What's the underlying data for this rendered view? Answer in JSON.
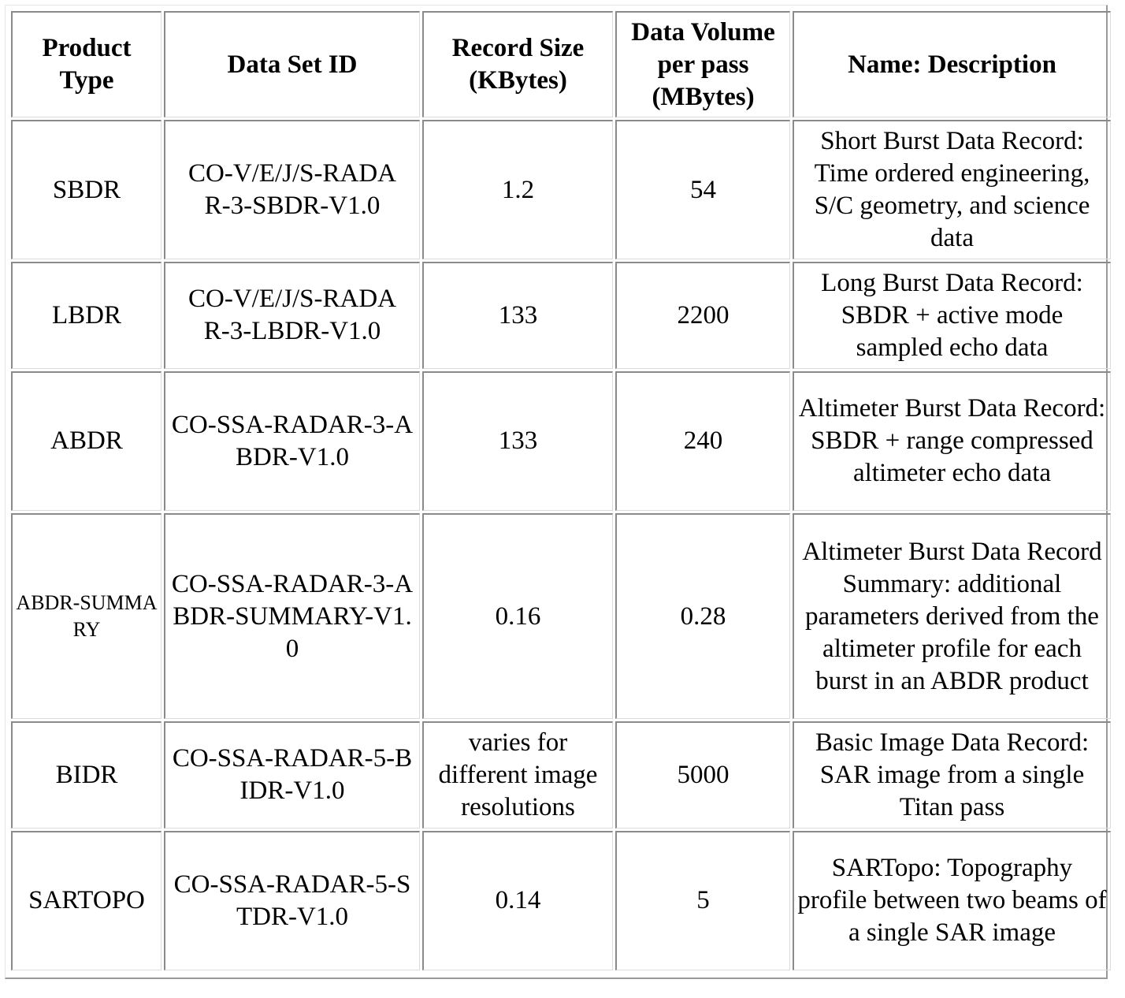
{
  "table": {
    "headers": [
      "Product Type",
      "Data Set ID",
      "Record Size (KBytes)",
      "Data Volume per pass (MBytes)",
      "Name: Description"
    ],
    "rows": [
      {
        "product_type": "SBDR",
        "data_set_id": "CO-V/E/J/S-RADAR-3-SBDR-V1.0",
        "record_size": "1.2",
        "data_volume": "54",
        "description": "Short Burst Data Record: Time ordered engineering, S/C geometry, and science data"
      },
      {
        "product_type": "LBDR",
        "data_set_id": "CO-V/E/J/S-RADAR-3-LBDR-V1.0",
        "record_size": "133",
        "data_volume": "2200",
        "description": "Long Burst Data Record: SBDR + active mode sampled echo data"
      },
      {
        "product_type": "ABDR",
        "data_set_id": "CO-SSA-RADAR-3-ABDR-V1.0",
        "record_size": "133",
        "data_volume": "240",
        "description": "Altimeter Burst Data Record: SBDR + range compressed altimeter echo data"
      },
      {
        "product_type": "ABDR-SUMMARY",
        "data_set_id": "CO-SSA-RADAR-3-ABDR-SUMMARY-V1.0",
        "record_size": "0.16",
        "data_volume": "0.28",
        "description": "Altimeter Burst Data Record Summary: additional parameters derived from the altimeter profile for each burst in an ABDR product"
      },
      {
        "product_type": "BIDR",
        "data_set_id": "CO-SSA-RADAR-5-BIDR-V1.0",
        "record_size": "varies for different image resolutions",
        "data_volume": "5000",
        "description": "Basic Image Data Record: SAR image from a single Titan pass"
      },
      {
        "product_type": "SARTOPO",
        "data_set_id": "CO-SSA-RADAR-5-STDR-V1.0",
        "record_size": "0.14",
        "data_volume": "5",
        "description": "SARTopo: Topography profile between two beams of a single SAR image"
      }
    ]
  }
}
